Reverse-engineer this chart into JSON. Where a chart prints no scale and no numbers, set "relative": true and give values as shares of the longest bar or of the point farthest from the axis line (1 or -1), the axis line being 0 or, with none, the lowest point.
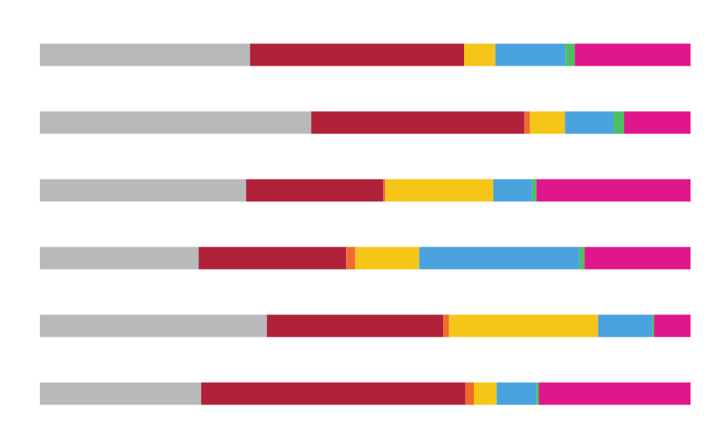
{
  "chart_data": {
    "type": "bar",
    "orientation": "horizontal",
    "stacked": true,
    "relative": true,
    "categories": [
      null,
      null,
      null,
      null,
      null,
      null
    ],
    "series": [
      {
        "color": "#b8b9ba",
        "values": [
          0.323,
          0.417,
          0.317,
          0.244,
          0.349,
          0.248
        ]
      },
      {
        "color": "#b0223a",
        "values": [
          0.329,
          0.328,
          0.211,
          0.227,
          0.271,
          0.406
        ]
      },
      {
        "color": "#f26b2c",
        "values": [
          0,
          0.008,
          0.003,
          0.014,
          0.009,
          0.013
        ]
      },
      {
        "color": "#f5c518",
        "values": [
          0.048,
          0.054,
          0.166,
          0.098,
          0.229,
          0.035
        ]
      },
      {
        "color": "#4aa3de",
        "values": [
          0.108,
          0.075,
          0.06,
          0.246,
          0.083,
          0.061
        ]
      },
      {
        "color": "#4cbf63",
        "values": [
          0.014,
          0.016,
          0.006,
          0.008,
          0.003,
          0.004
        ]
      },
      {
        "color": "#e0168c",
        "values": [
          0.178,
          0.102,
          0.237,
          0.163,
          0.056,
          0.233
        ]
      }
    ]
  }
}
